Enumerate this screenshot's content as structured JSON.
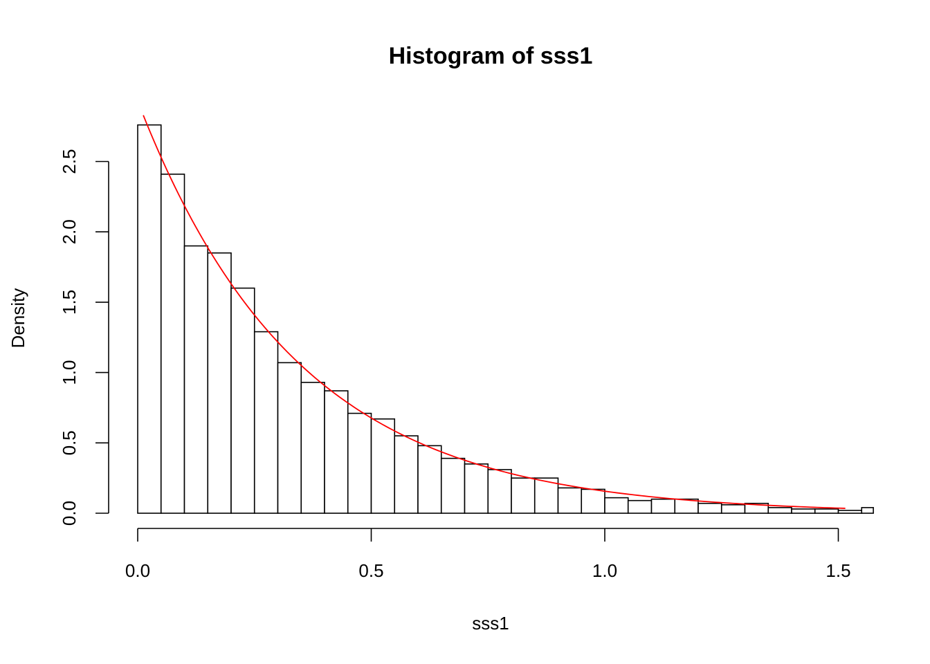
{
  "chart_data": {
    "type": "bar",
    "title": "Histogram of sss1",
    "xlabel": "sss1",
    "ylabel": "Density",
    "xlim": [
      0,
      1.575
    ],
    "ylim": [
      0,
      2.85
    ],
    "bin_width": 0.05,
    "bin_starts": [
      0.0,
      0.05,
      0.1,
      0.15,
      0.2,
      0.25,
      0.3,
      0.35,
      0.4,
      0.45,
      0.5,
      0.55,
      0.6,
      0.65,
      0.7,
      0.75,
      0.8,
      0.85,
      0.9,
      0.95,
      1.0,
      1.05,
      1.1,
      1.15,
      1.2,
      1.25,
      1.3,
      1.35,
      1.4,
      1.45,
      1.5,
      1.55
    ],
    "values": [
      2.76,
      2.41,
      1.9,
      1.85,
      1.6,
      1.29,
      1.07,
      0.93,
      0.87,
      0.71,
      0.67,
      0.55,
      0.48,
      0.39,
      0.35,
      0.31,
      0.25,
      0.25,
      0.18,
      0.17,
      0.11,
      0.09,
      0.1,
      0.1,
      0.07,
      0.06,
      0.07,
      0.04,
      0.03,
      0.03,
      0.02,
      0.04
    ],
    "x_ticks": [
      0.0,
      0.5,
      1.0,
      1.5
    ],
    "x_tick_labels": [
      "0.0",
      "0.5",
      "1.0",
      "1.5"
    ],
    "y_ticks": [
      0.0,
      0.5,
      1.0,
      1.5,
      2.0,
      2.5
    ],
    "y_tick_labels": [
      "0.0",
      "0.5",
      "1.0",
      "1.5",
      "2.0",
      "2.5"
    ],
    "grid": false,
    "overlay": {
      "type": "line",
      "color": "#ff0000",
      "function": "exponential_density",
      "rate": 2.93,
      "x_range": [
        0.012,
        1.515
      ]
    }
  }
}
